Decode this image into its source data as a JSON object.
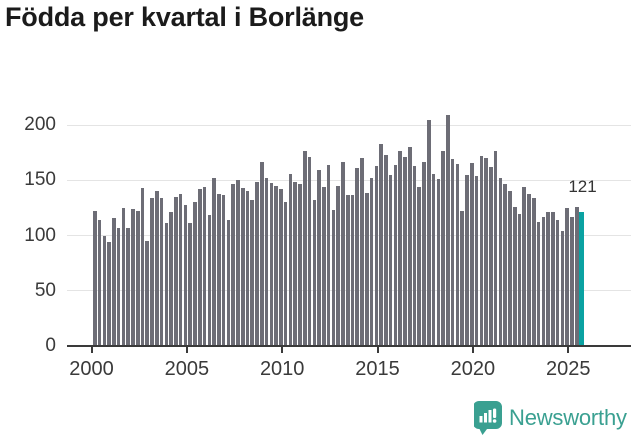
{
  "title": "Födda per kvartal i Borlänge",
  "chart_data": {
    "type": "bar",
    "title": "Födda per kvartal i Borlänge",
    "period": "quarterly",
    "start_period": "2000 Q1",
    "end_period": "2025 Q3",
    "values": [
      122,
      114,
      100,
      94,
      116,
      107,
      125,
      107,
      124,
      122,
      143,
      95,
      134,
      140,
      134,
      111,
      121,
      135,
      138,
      128,
      111,
      130,
      142,
      144,
      119,
      152,
      138,
      137,
      114,
      147,
      150,
      143,
      140,
      132,
      149,
      167,
      152,
      148,
      145,
      142,
      130,
      156,
      149,
      147,
      177,
      171,
      132,
      159,
      144,
      164,
      123,
      145,
      167,
      137,
      137,
      161,
      170,
      139,
      152,
      163,
      183,
      173,
      155,
      164,
      177,
      171,
      180,
      163,
      144,
      167,
      205,
      156,
      151,
      177,
      209,
      169,
      165,
      122,
      155,
      166,
      154,
      172,
      170,
      162,
      177,
      152,
      147,
      140,
      126,
      120,
      144,
      138,
      134,
      112,
      117,
      121,
      121,
      114,
      104,
      125,
      117,
      126,
      121
    ],
    "y_ticks": [
      "0",
      "50",
      "100",
      "150",
      "200"
    ],
    "y_tick_values": [
      0,
      50,
      100,
      150,
      200
    ],
    "x_tick_labels": [
      "2000",
      "2005",
      "2010",
      "2015",
      "2020",
      "2025"
    ],
    "ylim": [
      0,
      220
    ],
    "grid": "horizontal",
    "legend": "none",
    "bar_color": "#6d6d76",
    "highlight_color": "#0aa2a2",
    "highlight_index": 102,
    "annotation": {
      "text": "121",
      "value": 121
    }
  },
  "footer": {
    "brand": "Newsworthy",
    "brand_color": "#3aa091",
    "logo_icon": "bar-chart-speech-bubble-icon"
  }
}
